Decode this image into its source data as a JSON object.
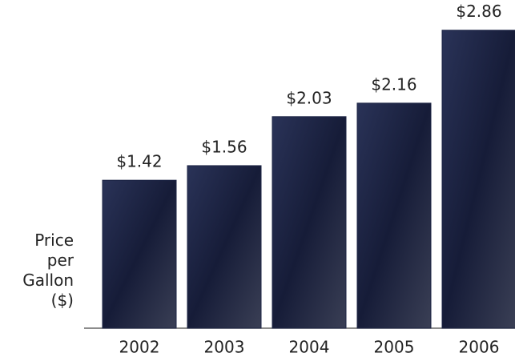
{
  "chart_data": {
    "type": "bar",
    "y_label": "Price per Gallon ($)",
    "categories": [
      "2002",
      "2003",
      "2004",
      "2005",
      "2006"
    ],
    "values": [
      1.42,
      1.56,
      2.03,
      2.16,
      2.86
    ],
    "value_labels": [
      "$1.42",
      "$1.56",
      "$2.03",
      "$2.16",
      "$2.86"
    ],
    "color": "#1c2444",
    "ylim": [
      0,
      3.15
    ]
  }
}
